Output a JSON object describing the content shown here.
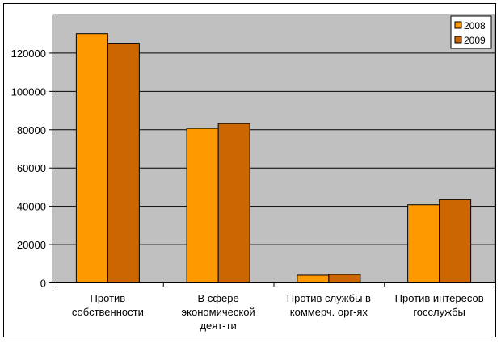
{
  "chart_data": {
    "type": "bar",
    "categories": [
      [
        "Против",
        "собственности"
      ],
      [
        "В сфере",
        "экономической",
        "деят-ти"
      ],
      [
        "Против службы в",
        "коммерч. орг-ях"
      ],
      [
        "Против интересов",
        "госслужбы"
      ]
    ],
    "series": [
      {
        "name": "2008",
        "color": "#FF9900",
        "values": [
          130000,
          80500,
          3800,
          40600
        ]
      },
      {
        "name": "2009",
        "color": "#CC6600",
        "values": [
          125000,
          83000,
          4200,
          43300
        ]
      }
    ],
    "yticks": [
      "0",
      "20000",
      "40000",
      "60000",
      "80000",
      "100000",
      "120000"
    ],
    "ylim": [
      0,
      140000
    ],
    "grid": true,
    "plot_background": "#C0C0C0",
    "legend_position": "top-right",
    "title": "",
    "xlabel": "",
    "ylabel": ""
  }
}
